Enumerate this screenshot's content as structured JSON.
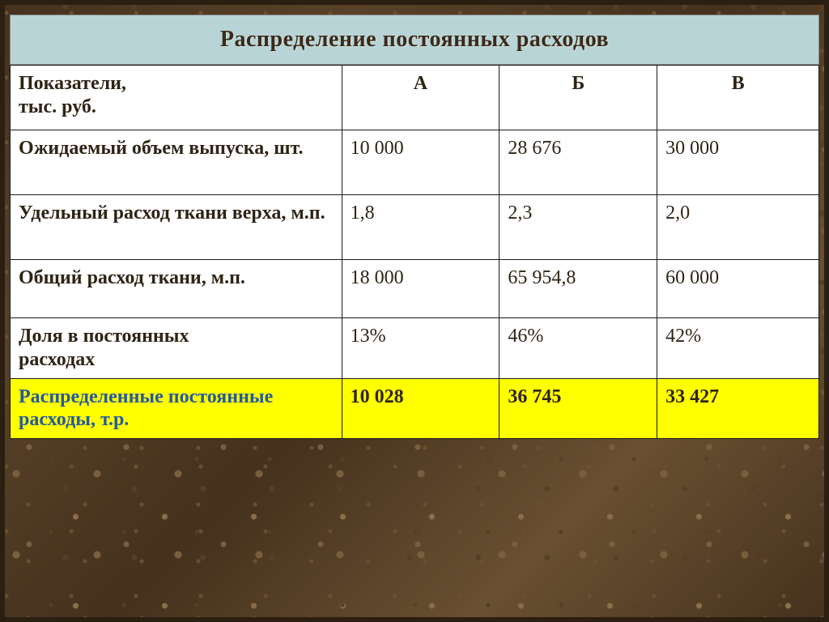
{
  "slide": {
    "title": "Распределение постоянных расходов",
    "background_texture": "brown-granite",
    "title_bar_color": "#b9d4d6",
    "title_text_color": "#3b2a1a",
    "title_fontsize_pt": 21,
    "body_fontsize_pt": 18,
    "table_border_color": "#1a1a1a",
    "table_bg_color": "#ffffff",
    "highlight_row_bg": "#ffff00",
    "highlight_label_color": "#265a9a"
  },
  "table": {
    "header": {
      "label_line1": "Показатели,",
      "label_line2": "тыс. руб.",
      "col_a": "А",
      "col_b": "Б",
      "col_v": "В"
    },
    "columns_width_pct": [
      41,
      19.5,
      19.5,
      20
    ],
    "rows": [
      {
        "label": "Ожидаемый объем выпуска, шт.",
        "a": "10 000",
        "b": " 28 676",
        "v": "30 000",
        "highlight": false
      },
      {
        "label": "Удельный расход ткани верха, м.п.",
        "a": " 1,8",
        "b": "  2,3",
        "v": "  2,0",
        "highlight": false
      },
      {
        "label": "Общий расход ткани, м.п.",
        "a": "18 000",
        "b": "65 954,8",
        "v": "60 000",
        "highlight": false
      },
      {
        "label_line1": "Доля в постоянных",
        "label_line2": "расходах",
        "a": "13%",
        "b": "46%",
        "v": "42%",
        "highlight": false
      },
      {
        "label": "Распределенные постоянные расходы, т.р.",
        "a": " 10 028",
        "b": " 36 745",
        "v": " 33 427",
        "highlight": true
      }
    ]
  }
}
